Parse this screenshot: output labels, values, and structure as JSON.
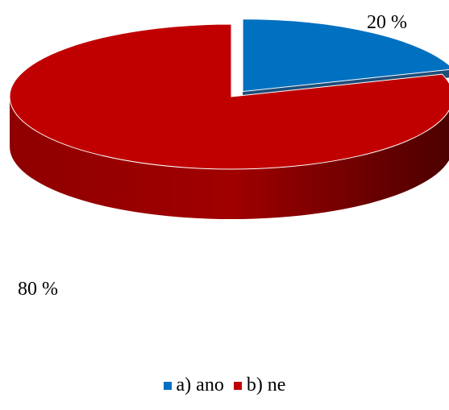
{
  "chart_data": {
    "type": "pie",
    "style": "3d-exploded",
    "categories": [
      "a) ano",
      "b) ne"
    ],
    "values": [
      20,
      80
    ],
    "data_labels": [
      "20 %",
      "80 %"
    ],
    "colors": [
      "#0070C0",
      "#C00000"
    ],
    "title": "",
    "legend_position": "bottom"
  },
  "legend": {
    "items": [
      {
        "label": "a) ano",
        "color": "#0070C0"
      },
      {
        "label": "b) ne",
        "color": "#C00000"
      }
    ]
  }
}
